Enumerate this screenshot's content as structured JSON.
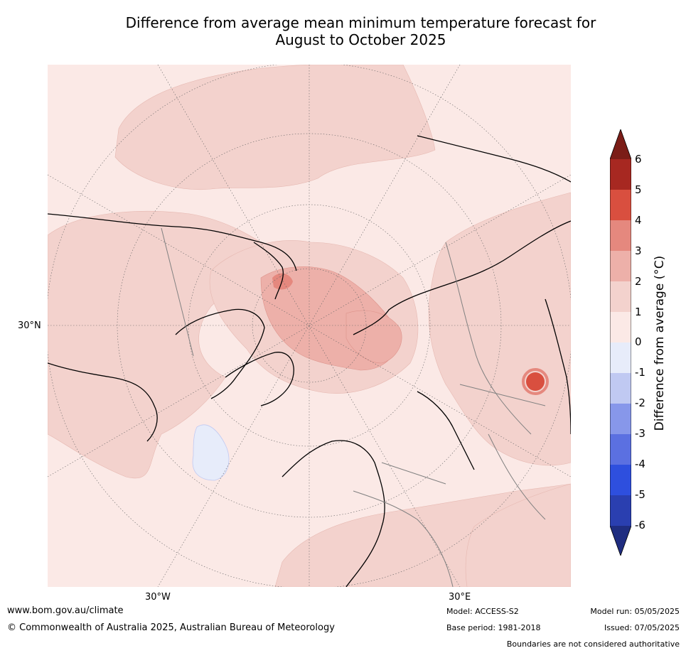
{
  "title": {
    "line1": "Difference from average mean minimum temperature forecast for",
    "line2": "August to October 2025"
  },
  "map": {
    "projection": "north-polar-stereographic",
    "lat_label": "30°N",
    "lon_labels": [
      "30°W",
      "30°E"
    ],
    "fill_colors": {
      "0_to_1": "#fbe9e6",
      "1_to_2": "#f3d2cd",
      "2_to_3": "#edb0a9",
      "3_to_4": "#e5887e",
      "4_to_5": "#d94f3f",
      "-1_to_0": "#e7ecfa",
      "coast": "#000000",
      "borders": "#808080"
    }
  },
  "colorbar": {
    "label": "Difference from average (°C)",
    "ticks": [
      "6",
      "5",
      "4",
      "3",
      "2",
      "1",
      "0",
      "-1",
      "-2",
      "-3",
      "-4",
      "-5",
      "-6"
    ],
    "colors": [
      "#7b1d17",
      "#a72821",
      "#d94f3f",
      "#e5887e",
      "#edb0a9",
      "#f3d2cd",
      "#fbe9e6",
      "#e7ecfa",
      "#c0c9f2",
      "#8797ea",
      "#5b70e1",
      "#2e4fde",
      "#2a3fb0",
      "#1f2d80"
    ]
  },
  "footer": {
    "website": "www.bom.gov.au/climate",
    "copyright": "© Commonwealth of Australia 2025, Australian Bureau of Meteorology",
    "model": "Model: ACCESS-S2",
    "base_period": "Base period: 1981-2018",
    "model_run": "Model run: 05/05/2025",
    "issued": "Issued: 07/05/2025",
    "disclaimer": "Boundaries are not considered authoritative"
  }
}
